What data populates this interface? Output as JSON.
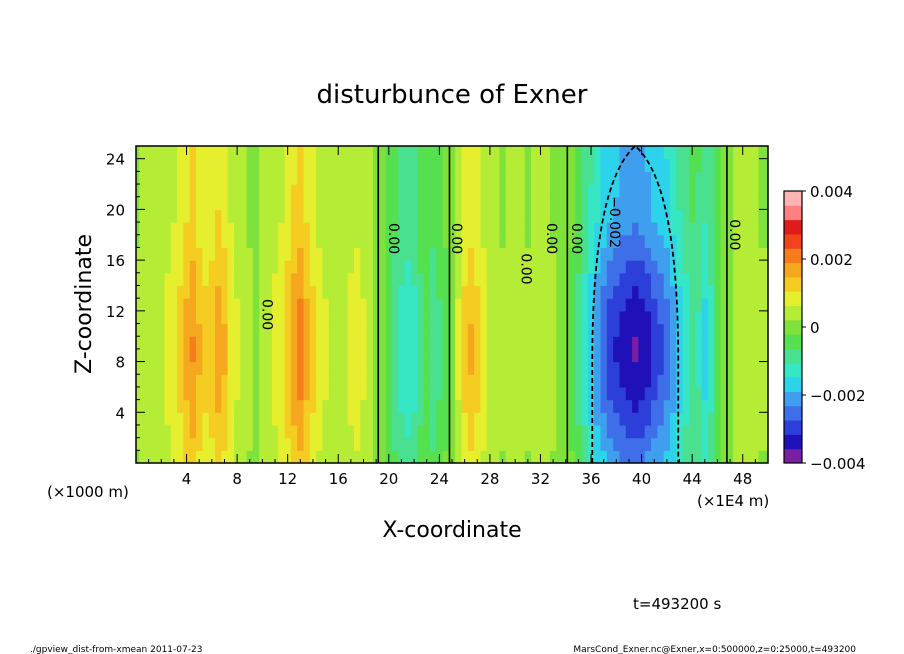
{
  "chart_data": {
    "type": "heatmap",
    "title": "disturbunce of Exner",
    "xlabel": "X-coordinate",
    "ylabel": "Z-coordinate",
    "x_unit_left": "(×1000 m)",
    "x_unit_right": "(×1E4 m)",
    "xlim": [
      0,
      50
    ],
    "ylim": [
      0,
      25
    ],
    "x_ticks": [
      "4",
      "8",
      "12",
      "16",
      "20",
      "24",
      "28",
      "32",
      "36",
      "40",
      "44",
      "48"
    ],
    "y_ticks": [
      "4",
      "8",
      "12",
      "16",
      "20",
      "24"
    ],
    "colorbar": {
      "vmin": -0.004,
      "vmax": 0.004,
      "labels": [
        "0.004",
        "0.002",
        "0",
        "−0.002",
        "−0.004"
      ],
      "colors": [
        "#7b1fa2",
        "#1f10b8",
        "#2c3fd8",
        "#3f6fe8",
        "#3f9fee",
        "#2dd3ea",
        "#36e6c5",
        "#49e08f",
        "#55e04f",
        "#7fe23a",
        "#b5ec35",
        "#e6ef2e",
        "#f5cc22",
        "#f5a81e",
        "#f57d1c",
        "#f0441a",
        "#e01b1b",
        "#ff8080",
        "#ffb3b3"
      ]
    },
    "columns": [
      {
        "x": 0.0,
        "v": 0.0003
      },
      {
        "x": 0.5,
        "v": 0.0004
      },
      {
        "x": 1.0,
        "v": 0.0005
      },
      {
        "x": 1.5,
        "v": 0.0006
      },
      {
        "x": 2.0,
        "v": 0.0006
      },
      {
        "x": 2.5,
        "v": 0.0008
      },
      {
        "x": 3.0,
        "v": 0.001
      },
      {
        "x": 3.5,
        "v": 0.0012
      },
      {
        "x": 4.0,
        "v": 0.0016
      },
      {
        "x": 4.5,
        "v": 0.0019
      },
      {
        "x": 5.0,
        "v": 0.0015
      },
      {
        "x": 5.5,
        "v": 0.0012
      },
      {
        "x": 6.0,
        "v": 0.0014
      },
      {
        "x": 6.5,
        "v": 0.0017
      },
      {
        "x": 7.0,
        "v": 0.0015
      },
      {
        "x": 7.5,
        "v": 0.001
      },
      {
        "x": 8.0,
        "v": 0.0007
      },
      {
        "x": 8.5,
        "v": 0.0005
      },
      {
        "x": 9.0,
        "v": 0.0003
      },
      {
        "x": 9.5,
        "v": 0.0001
      },
      {
        "x": 10.0,
        "v": 0.0004
      },
      {
        "x": 10.5,
        "v": 0.0006
      },
      {
        "x": 11.0,
        "v": 0.0008
      },
      {
        "x": 11.5,
        "v": 0.001
      },
      {
        "x": 12.0,
        "v": 0.0014
      },
      {
        "x": 12.5,
        "v": 0.0018
      },
      {
        "x": 13.0,
        "v": 0.0021
      },
      {
        "x": 13.5,
        "v": 0.0016
      },
      {
        "x": 14.0,
        "v": 0.0012
      },
      {
        "x": 14.5,
        "v": 0.0009
      },
      {
        "x": 15.0,
        "v": 0.0007
      },
      {
        "x": 15.5,
        "v": 0.0006
      },
      {
        "x": 16.0,
        "v": 0.0005
      },
      {
        "x": 16.5,
        "v": 0.0006
      },
      {
        "x": 17.0,
        "v": 0.0008
      },
      {
        "x": 17.5,
        "v": 0.0009
      },
      {
        "x": 18.0,
        "v": 0.0007
      },
      {
        "x": 18.5,
        "v": 0.0004
      },
      {
        "x": 19.0,
        "v": 0.0001
      },
      {
        "x": 19.5,
        "v": -0.0002
      },
      {
        "x": 20.0,
        "v": -0.0005
      },
      {
        "x": 20.5,
        "v": -0.0009
      },
      {
        "x": 21.0,
        "v": -0.0012
      },
      {
        "x": 21.5,
        "v": -0.0014
      },
      {
        "x": 22.0,
        "v": -0.0012
      },
      {
        "x": 22.5,
        "v": -0.0008
      },
      {
        "x": 23.0,
        "v": -0.0006
      },
      {
        "x": 23.5,
        "v": -0.0009
      },
      {
        "x": 24.0,
        "v": -0.0007
      },
      {
        "x": 24.5,
        "v": -0.0003
      },
      {
        "x": 25.0,
        "v": 0.0002
      },
      {
        "x": 25.5,
        "v": 0.0007
      },
      {
        "x": 26.0,
        "v": 0.0012
      },
      {
        "x": 26.5,
        "v": 0.0015
      },
      {
        "x": 27.0,
        "v": 0.0012
      },
      {
        "x": 27.5,
        "v": 0.0009
      },
      {
        "x": 28.0,
        "v": 0.0006
      },
      {
        "x": 28.5,
        "v": 0.0004
      },
      {
        "x": 29.0,
        "v": 0.0003
      },
      {
        "x": 29.5,
        "v": 0.0004
      },
      {
        "x": 30.0,
        "v": 0.0005
      },
      {
        "x": 30.5,
        "v": 0.0004
      },
      {
        "x": 31.0,
        "v": 0.0003
      },
      {
        "x": 31.5,
        "v": 0.0004
      },
      {
        "x": 32.0,
        "v": 0.0005
      },
      {
        "x": 32.5,
        "v": 0.0004
      },
      {
        "x": 33.0,
        "v": 0.0003
      },
      {
        "x": 33.5,
        "v": 0.0002
      },
      {
        "x": 34.0,
        "v": 0.0001
      },
      {
        "x": 34.5,
        "v": -0.0003
      },
      {
        "x": 35.0,
        "v": -0.0008
      },
      {
        "x": 35.5,
        "v": -0.0013
      },
      {
        "x": 36.0,
        "v": -0.0018
      },
      {
        "x": 36.5,
        "v": -0.0023
      },
      {
        "x": 37.0,
        "v": -0.0027
      },
      {
        "x": 37.5,
        "v": -0.003
      },
      {
        "x": 38.0,
        "v": -0.0032
      },
      {
        "x": 38.5,
        "v": -0.0034
      },
      {
        "x": 39.0,
        "v": -0.0035
      },
      {
        "x": 39.5,
        "v": -0.0036
      },
      {
        "x": 40.0,
        "v": -0.0035
      },
      {
        "x": 40.5,
        "v": -0.0033
      },
      {
        "x": 41.0,
        "v": -0.003
      },
      {
        "x": 41.5,
        "v": -0.0028
      },
      {
        "x": 42.0,
        "v": -0.0026
      },
      {
        "x": 42.5,
        "v": -0.0022
      },
      {
        "x": 43.0,
        "v": -0.0017
      },
      {
        "x": 43.5,
        "v": -0.0013
      },
      {
        "x": 44.0,
        "v": -0.001
      },
      {
        "x": 44.5,
        "v": -0.0011
      },
      {
        "x": 45.0,
        "v": -0.0016
      },
      {
        "x": 45.5,
        "v": -0.0012
      },
      {
        "x": 46.0,
        "v": -0.0006
      },
      {
        "x": 46.5,
        "v": -0.0002
      },
      {
        "x": 47.0,
        "v": 0.0002
      },
      {
        "x": 47.5,
        "v": 0.0004
      },
      {
        "x": 48.0,
        "v": 0.0005
      },
      {
        "x": 48.5,
        "v": 0.0005
      },
      {
        "x": 49.0,
        "v": 0.0004
      },
      {
        "x": 49.5,
        "v": 0.0003
      },
      {
        "x": 50.0,
        "v": 0.0003
      }
    ],
    "contour_labels": [
      {
        "text": "0.00",
        "x": 10.0,
        "y": 11.7
      },
      {
        "text": "0.00",
        "x": 20.0,
        "y": 17.7
      },
      {
        "text": "0.00",
        "x": 25.0,
        "y": 17.7
      },
      {
        "text": "0.00",
        "x": 30.5,
        "y": 15.3
      },
      {
        "text": "0.00",
        "x": 32.5,
        "y": 17.7
      },
      {
        "text": "0.00",
        "x": 34.5,
        "y": 17.7
      },
      {
        "text": "−0.002",
        "x": 37.5,
        "y": 19.0
      },
      {
        "text": "0.00",
        "x": 47.0,
        "y": 18.0
      }
    ]
  },
  "footer": {
    "time": "t=493200 s",
    "script": "./gpview_dist-from-xmean   2011-07-23",
    "source": "MarsCond_Exner.nc@Exner,x=0:500000,z=0:25000,t=493200"
  }
}
